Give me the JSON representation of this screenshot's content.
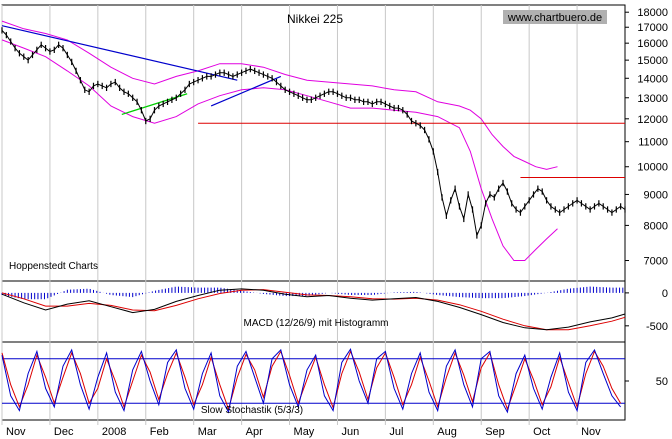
{
  "chart_data": {
    "type": "line",
    "title": "Nikkei 225",
    "source_label": "www.chartbuero.de",
    "credit_label": "Hoppenstedt Charts",
    "x_labels": [
      "Nov",
      "Dec",
      "2008",
      "Feb",
      "Mar",
      "Apr",
      "May",
      "Jun",
      "Jul",
      "Aug",
      "Sep",
      "Oct",
      "Nov"
    ],
    "price_axis": {
      "ticks": [
        "18000",
        "17000",
        "16000",
        "15000",
        "14000",
        "13000",
        "12000",
        "11000",
        "10000",
        "9000",
        "8000",
        "7000"
      ],
      "ylim": [
        6500,
        18500
      ],
      "scale": "log"
    },
    "price_series": {
      "name": "Nikkei 225",
      "x": [
        0,
        2,
        4,
        6,
        8,
        10,
        12,
        14,
        16,
        18,
        20,
        22,
        24,
        26,
        28,
        30,
        32,
        34,
        36,
        38,
        40,
        42,
        44,
        46,
        48,
        50,
        52,
        54,
        56,
        58,
        60,
        62,
        64,
        66,
        68,
        70,
        72,
        74,
        76,
        78,
        80,
        82,
        84,
        86,
        88,
        90,
        92,
        94,
        96,
        98,
        100,
        102,
        104,
        106,
        108,
        110,
        112,
        114,
        116,
        118,
        120,
        122,
        124,
        126,
        128,
        130,
        132,
        134,
        136,
        138,
        140,
        142,
        144,
        146,
        148,
        150,
        152,
        154,
        156,
        158,
        160,
        162,
        164,
        166,
        168,
        170,
        172,
        174,
        176,
        178,
        180,
        182,
        184,
        186,
        188,
        190,
        192,
        194,
        196,
        198,
        200,
        202,
        204,
        206,
        208,
        210,
        212,
        214,
        216,
        218,
        220,
        222,
        224,
        226,
        228,
        230,
        232,
        234,
        236,
        238,
        240,
        242,
        244,
        246,
        248,
        250,
        252,
        254,
        256,
        258,
        260,
        262,
        264,
        266,
        268,
        270,
        272,
        274,
        276,
        278,
        280,
        282,
        284,
        286
      ],
      "y": [
        16800,
        16500,
        16100,
        15700,
        15400,
        15200,
        15000,
        15300,
        15600,
        15900,
        15700,
        15500,
        15600,
        15900,
        15700,
        15300,
        14900,
        14400,
        13900,
        13400,
        13300,
        13600,
        13700,
        13600,
        13500,
        13700,
        13800,
        13500,
        13300,
        13200,
        13000,
        12800,
        12400,
        11900,
        12000,
        12400,
        12600,
        12700,
        12800,
        12900,
        13000,
        13200,
        13400,
        13700,
        13800,
        13900,
        14000,
        14100,
        14100,
        14200,
        14300,
        14300,
        14200,
        14100,
        14200,
        14300,
        14400,
        14500,
        14400,
        14300,
        14200,
        14100,
        14000,
        13800,
        13600,
        13400,
        13300,
        13200,
        13100,
        13000,
        12900,
        12900,
        13000,
        13100,
        13200,
        13300,
        13300,
        13200,
        13100,
        13000,
        13000,
        12900,
        12900,
        12800,
        12800,
        12700,
        12800,
        12800,
        12700,
        12600,
        12500,
        12500,
        12400,
        12200,
        11900,
        11800,
        11700,
        11500,
        11100,
        10600,
        9800,
        8900,
        8300,
        8800,
        9200,
        8600,
        8200,
        9000,
        8500,
        7700,
        8000,
        8700,
        9000,
        8900,
        9200,
        9400,
        9100,
        8700,
        8500,
        8400,
        8600,
        8800,
        9000,
        9200,
        9100,
        8800,
        8600,
        8500,
        8400,
        8500,
        8600,
        8700,
        8800,
        8700,
        8600,
        8500,
        8600,
        8700,
        8600,
        8500,
        8400,
        8500,
        8600,
        8500
      ],
      "color": "#000000"
    },
    "upper_band": {
      "x": [
        0,
        10,
        20,
        30,
        40,
        50,
        60,
        70,
        80,
        90,
        100,
        110,
        120,
        130,
        140,
        150,
        160,
        170,
        180,
        190,
        200,
        210,
        215,
        220,
        225,
        230,
        235,
        240,
        245,
        250,
        255
      ],
      "y": [
        17400,
        16900,
        16600,
        16200,
        15400,
        14600,
        14000,
        13700,
        14100,
        14400,
        14800,
        14800,
        14600,
        14200,
        13900,
        13800,
        13700,
        13600,
        13400,
        13300,
        12800,
        12600,
        12400,
        12000,
        11300,
        10800,
        10400,
        10200,
        10000,
        9900,
        10000
      ]
    },
    "lower_band": {
      "x": [
        0,
        10,
        20,
        30,
        40,
        50,
        60,
        70,
        80,
        90,
        100,
        110,
        120,
        130,
        140,
        150,
        160,
        170,
        180,
        190,
        200,
        210,
        215,
        220,
        225,
        230,
        235,
        240,
        245,
        250,
        255
      ],
      "y": [
        16200,
        15700,
        15200,
        14400,
        13600,
        12600,
        12100,
        11800,
        12100,
        12700,
        13100,
        13400,
        13500,
        13400,
        13100,
        12800,
        12500,
        12500,
        12400,
        12300,
        12100,
        11600,
        10600,
        9200,
        8200,
        7400,
        7000,
        7000,
        7300,
        7600,
        7900
      ]
    },
    "trendlines": [
      {
        "name": "downtrend",
        "x": [
          0,
          108
        ],
        "y": [
          17100,
          13900
        ],
        "color": "#0000cc"
      },
      {
        "name": "uptrend-1",
        "x": [
          55,
          85
        ],
        "y": [
          12200,
          13200
        ],
        "color": "#00cc00"
      },
      {
        "name": "uptrend-2",
        "x": [
          96,
          128
        ],
        "y": [
          12600,
          14100
        ],
        "color": "#0000cc"
      }
    ],
    "horizontal_lines": [
      {
        "y": 11800,
        "x_from": 90,
        "x_to": 286,
        "color": "#dd0000"
      },
      {
        "y": 9600,
        "x_from": 238,
        "x_to": 286,
        "color": "#dd0000"
      }
    ],
    "macd": {
      "label": "MACD (12/26/9) mit Histogramm",
      "ticks": [
        "0",
        "-500"
      ],
      "ylim": [
        -700,
        150
      ],
      "macd_line": {
        "x": [
          0,
          10,
          20,
          30,
          40,
          50,
          60,
          70,
          80,
          90,
          100,
          110,
          120,
          130,
          140,
          150,
          160,
          170,
          180,
          190,
          200,
          210,
          220,
          230,
          240,
          250,
          260,
          270,
          280,
          286
        ],
        "y": [
          -20,
          -150,
          -260,
          -170,
          -120,
          -210,
          -300,
          -250,
          -130,
          -40,
          40,
          60,
          40,
          -20,
          -60,
          -40,
          -80,
          -110,
          -90,
          -70,
          -130,
          -220,
          -330,
          -450,
          -530,
          -560,
          -520,
          -440,
          -380,
          -320
        ]
      },
      "signal_line": {
        "x": [
          0,
          10,
          20,
          30,
          40,
          50,
          60,
          70,
          80,
          90,
          100,
          110,
          120,
          130,
          140,
          150,
          160,
          170,
          180,
          190,
          200,
          210,
          220,
          230,
          240,
          250,
          260,
          270,
          280,
          286
        ],
        "y": [
          0,
          -90,
          -200,
          -200,
          -160,
          -190,
          -260,
          -270,
          -190,
          -90,
          -10,
          40,
          50,
          10,
          -30,
          -40,
          -60,
          -90,
          -95,
          -80,
          -110,
          -180,
          -280,
          -400,
          -500,
          -560,
          -560,
          -500,
          -430,
          -370
        ]
      }
    },
    "stochastic": {
      "label": "Slow Stochastik (5/3/3)",
      "ticks": [
        "50"
      ],
      "ylim": [
        0,
        100
      ],
      "reference_lines": [
        80,
        20
      ],
      "k_line": {
        "x": [
          0,
          4,
          8,
          12,
          16,
          20,
          24,
          28,
          32,
          36,
          40,
          44,
          48,
          52,
          56,
          60,
          64,
          68,
          72,
          76,
          80,
          84,
          88,
          92,
          96,
          100,
          104,
          108,
          112,
          116,
          120,
          124,
          128,
          132,
          136,
          140,
          144,
          148,
          152,
          156,
          160,
          164,
          168,
          172,
          176,
          180,
          184,
          188,
          192,
          196,
          200,
          204,
          208,
          212,
          216,
          220,
          224,
          228,
          232,
          236,
          240,
          244,
          248,
          252,
          256,
          260,
          264,
          268,
          272,
          276,
          280,
          284
        ],
        "y": [
          85,
          30,
          10,
          60,
          90,
          40,
          15,
          70,
          92,
          45,
          12,
          55,
          88,
          35,
          10,
          65,
          90,
          50,
          18,
          75,
          92,
          40,
          12,
          60,
          88,
          30,
          8,
          70,
          90,
          55,
          20,
          80,
          92,
          45,
          15,
          65,
          85,
          30,
          10,
          75,
          93,
          50,
          20,
          80,
          90,
          40,
          12,
          60,
          88,
          35,
          10,
          70,
          92,
          45,
          15,
          80,
          90,
          30,
          8,
          60,
          85,
          40,
          12,
          55,
          88,
          35,
          10,
          75,
          92,
          60,
          30,
          15
        ]
      },
      "d_line": {
        "x": [
          0,
          4,
          8,
          12,
          16,
          20,
          24,
          28,
          32,
          36,
          40,
          44,
          48,
          52,
          56,
          60,
          64,
          68,
          72,
          76,
          80,
          84,
          88,
          92,
          96,
          100,
          104,
          108,
          112,
          116,
          120,
          124,
          128,
          132,
          136,
          140,
          144,
          148,
          152,
          156,
          160,
          164,
          168,
          172,
          176,
          180,
          184,
          188,
          192,
          196,
          200,
          204,
          208,
          212,
          216,
          220,
          224,
          228,
          232,
          236,
          240,
          244,
          248,
          252,
          256,
          260,
          264,
          268,
          272,
          276,
          280,
          284
        ],
        "y": [
          88,
          45,
          15,
          45,
          85,
          55,
          20,
          55,
          88,
          60,
          20,
          40,
          80,
          50,
          15,
          50,
          85,
          62,
          25,
          60,
          88,
          55,
          18,
          45,
          82,
          45,
          12,
          55,
          86,
          65,
          28,
          70,
          90,
          58,
          20,
          52,
          82,
          45,
          14,
          60,
          90,
          62,
          25,
          68,
          88,
          55,
          18,
          45,
          82,
          50,
          15,
          55,
          88,
          58,
          22,
          68,
          88,
          45,
          12,
          45,
          80,
          52,
          18,
          42,
          82,
          48,
          15,
          60,
          90,
          70,
          40,
          20
        ]
      }
    },
    "colors": {
      "price": "#000000",
      "bollinger": "#e000e0",
      "downtrend": "#0000cc",
      "uptrend": "#00cc00",
      "resistance": "#dd0000",
      "macd_line": "#000000",
      "macd_signal": "#dd0000",
      "macd_histogram": "#0000cc",
      "stoch_k": "#0000cc",
      "stoch_d": "#dd0000",
      "stoch_ref": "#0000cc",
      "source_bg": "#b0b0b0"
    }
  }
}
